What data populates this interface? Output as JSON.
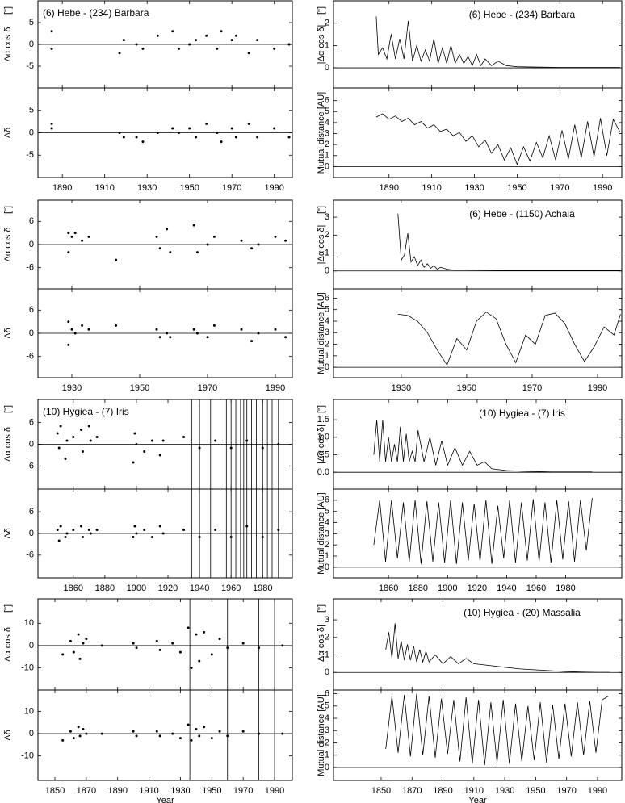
{
  "chart_data": [
    {
      "type": "scatter",
      "title": "(6) Hebe - (234) Barbara",
      "ylabel": "Δα cos δ",
      "y_unit": "[\"]",
      "xlim": [
        1878.5,
        1998.5
      ],
      "ylim": [
        -10,
        10
      ],
      "yticks": [
        -5,
        0,
        5
      ],
      "x": [
        1885,
        1885,
        1917,
        1919,
        1925,
        1928,
        1935,
        1942,
        1945,
        1950,
        1953,
        1958,
        1963,
        1965,
        1970,
        1972,
        1978,
        1982,
        1990,
        1997
      ],
      "values": [
        3,
        -1,
        -2,
        1,
        0,
        -1,
        2,
        3,
        -1,
        0,
        1,
        2,
        -1,
        3,
        1,
        2,
        -2,
        1,
        -1,
        0
      ]
    },
    {
      "type": "scatter",
      "ylabel": "Δδ",
      "xlim": [
        1878.5,
        1998.5
      ],
      "ylim": [
        -10,
        10
      ],
      "yticks": [
        -5,
        0,
        5
      ],
      "xticks": [
        1890,
        1910,
        1930,
        1950,
        1970,
        1990
      ],
      "x": [
        1885,
        1885,
        1917,
        1919,
        1925,
        1928,
        1935,
        1942,
        1945,
        1950,
        1953,
        1958,
        1963,
        1965,
        1970,
        1972,
        1978,
        1982,
        1990,
        1997
      ],
      "values": [
        2,
        1,
        0,
        -1,
        -1,
        -2,
        0,
        1,
        0,
        1,
        -1,
        2,
        0,
        -2,
        1,
        -1,
        2,
        -1,
        1,
        -1
      ]
    },
    {
      "type": "line",
      "title": "(6) Hebe - (234) Barbara",
      "ylabel": "|Δα cos δ|",
      "y_unit": "[\"]",
      "xlim": [
        1864,
        1999
      ],
      "ylim": [
        -0.9,
        3.0
      ],
      "yticks": [
        0,
        1,
        2
      ],
      "x": [
        1884,
        1885,
        1887,
        1889,
        1891,
        1893,
        1895,
        1897,
        1899,
        1901,
        1903,
        1905,
        1907,
        1909,
        1911,
        1913,
        1915,
        1917,
        1919,
        1921,
        1923,
        1925,
        1927,
        1929,
        1931,
        1933,
        1935,
        1938,
        1941,
        1945,
        1950,
        1960,
        1970,
        1980,
        1990,
        1998
      ],
      "values": [
        2.3,
        0.6,
        0.9,
        0.4,
        1.5,
        0.4,
        1.3,
        0.4,
        2.1,
        0.3,
        1.0,
        0.3,
        0.8,
        0.3,
        1.3,
        0.2,
        0.9,
        0.2,
        1.0,
        0.2,
        0.6,
        0.2,
        0.5,
        0.1,
        0.6,
        0.1,
        0.4,
        0.1,
        0.3,
        0.1,
        0.05,
        0.03,
        0.02,
        0.02,
        0.02,
        0.02
      ]
    },
    {
      "type": "line",
      "ylabel": "Mutual distance [AU]",
      "xlim": [
        1864,
        1999
      ],
      "ylim": [
        -1,
        7.15
      ],
      "yticks": [
        0,
        1,
        2,
        3,
        4,
        5,
        6
      ],
      "xticks": [
        1890,
        1910,
        1930,
        1950,
        1970,
        1990
      ],
      "x": [
        1884,
        1887,
        1890,
        1893,
        1896,
        1899,
        1902,
        1905,
        1908,
        1911,
        1914,
        1917,
        1920,
        1923,
        1926,
        1929,
        1932,
        1935,
        1938,
        1941,
        1944,
        1947,
        1950,
        1953,
        1956,
        1959,
        1962,
        1965,
        1968,
        1971,
        1974,
        1977,
        1980,
        1983,
        1986,
        1989,
        1992,
        1995,
        1998
      ],
      "values": [
        4.5,
        4.8,
        4.3,
        4.6,
        4.1,
        4.4,
        3.8,
        4.1,
        3.5,
        3.8,
        3.2,
        3.4,
        2.8,
        3.1,
        2.3,
        2.8,
        1.8,
        2.4,
        1.2,
        2.0,
        0.6,
        1.7,
        0.2,
        1.8,
        0.5,
        2.2,
        0.8,
        2.8,
        0.6,
        3.3,
        0.7,
        3.8,
        0.8,
        4.1,
        0.9,
        4.4,
        1.0,
        4.3,
        3.2
      ]
    },
    {
      "type": "scatter",
      "ylabel": "Δα cos δ",
      "y_unit": "[\"]",
      "xlim": [
        1920,
        1995
      ],
      "ylim": [
        -11.5,
        11.5
      ],
      "yticks": [
        -6,
        0,
        6
      ],
      "x": [
        1929,
        1929,
        1930,
        1931,
        1933,
        1935,
        1943,
        1955,
        1956,
        1958,
        1959,
        1966,
        1967,
        1970,
        1972,
        1980,
        1983,
        1985,
        1990,
        1993
      ],
      "values": [
        3,
        -2,
        2,
        3,
        1,
        2,
        -4,
        2,
        -1,
        4,
        -2,
        5,
        -2,
        0,
        2,
        1,
        -1,
        0,
        2,
        1
      ]
    },
    {
      "type": "scatter",
      "ylabel": "Δδ",
      "xlim": [
        1920,
        1995
      ],
      "ylim": [
        -11.5,
        11.5
      ],
      "yticks": [
        -6,
        0,
        6
      ],
      "xticks": [
        1930,
        1950,
        1970,
        1990
      ],
      "x": [
        1929,
        1929,
        1930,
        1931,
        1933,
        1935,
        1943,
        1955,
        1956,
        1958,
        1959,
        1966,
        1967,
        1970,
        1972,
        1980,
        1983,
        1985,
        1990,
        1993
      ],
      "values": [
        3,
        -3,
        1,
        0,
        2,
        1,
        2,
        1,
        -1,
        0,
        -1,
        1,
        0,
        -1,
        2,
        1,
        -2,
        0,
        1,
        -1
      ]
    },
    {
      "type": "line",
      "title": "(6) Hebe - (1150) Achaia",
      "ylabel": "|Δα cos δ|",
      "y_unit": "[\"]",
      "xlim": [
        1909.3,
        1997.4
      ],
      "ylim": [
        -1,
        3.95
      ],
      "yticks": [
        0,
        1,
        2,
        3
      ],
      "x": [
        1929,
        1930,
        1931,
        1932,
        1933,
        1934,
        1935,
        1936,
        1937,
        1938,
        1939,
        1940,
        1941,
        1942,
        1944,
        1946,
        1950,
        1960,
        1970,
        1980,
        1990,
        1997
      ],
      "values": [
        3.2,
        0.6,
        0.9,
        2.1,
        0.5,
        0.8,
        0.3,
        0.6,
        0.2,
        0.4,
        0.15,
        0.3,
        0.1,
        0.2,
        0.1,
        0.05,
        0.05,
        0.03,
        0.03,
        0.03,
        0.03,
        0.03
      ]
    },
    {
      "type": "line",
      "ylabel": "Mutual distance [AU]",
      "xlim": [
        1909.3,
        1997.4
      ],
      "ylim": [
        -0.9,
        6.8
      ],
      "yticks": [
        0,
        1,
        2,
        3,
        4,
        5,
        6
      ],
      "xticks": [
        1930,
        1950,
        1970,
        1990
      ],
      "x": [
        1929,
        1932,
        1935,
        1938,
        1941,
        1944,
        1947,
        1950,
        1953,
        1956,
        1959,
        1962,
        1965,
        1968,
        1971,
        1974,
        1977,
        1980,
        1983,
        1986,
        1989,
        1992,
        1995,
        1997
      ],
      "values": [
        4.6,
        4.5,
        4.0,
        3.0,
        1.5,
        0.2,
        2.5,
        1.5,
        4.0,
        4.8,
        4.2,
        2.0,
        0.4,
        2.8,
        2.0,
        4.5,
        4.7,
        3.8,
        2.0,
        0.5,
        1.8,
        3.5,
        2.8,
        4.6
      ]
    },
    {
      "type": "scatter",
      "title": "(10) Hygiea - (7) Iris",
      "ylabel": "Δα cos δ",
      "y_unit": "[\"]",
      "xlim": [
        1837.6,
        1998.8
      ],
      "ylim": [
        -12.3,
        12.3
      ],
      "yticks": [
        -6,
        0,
        6
      ],
      "vlines": [
        1935,
        1940,
        1947,
        1953,
        1957,
        1960,
        1963,
        1966,
        1968,
        1970,
        1973,
        1976,
        1980,
        1983,
        1986,
        1990
      ],
      "x": [
        1850,
        1851,
        1852,
        1855,
        1856,
        1860,
        1865,
        1866,
        1870,
        1871,
        1875,
        1898,
        1899,
        1900,
        1905,
        1910,
        1915,
        1917,
        1930,
        1940,
        1950,
        1960,
        1970,
        1980,
        1990
      ],
      "values": [
        3,
        -1,
        5,
        -4,
        1,
        2,
        4,
        -2,
        5,
        1,
        2,
        -5,
        3,
        0,
        -2,
        1,
        -3,
        1,
        2,
        -1,
        1,
        -1,
        1,
        -1,
        0
      ]
    },
    {
      "type": "scatter",
      "ylabel": "Δδ",
      "xlim": [
        1837.6,
        1998.8
      ],
      "ylim": [
        -12.3,
        12.3
      ],
      "yticks": [
        -6,
        0,
        6
      ],
      "xticks": [
        1860,
        1880,
        1900,
        1920,
        1940,
        1960,
        1980
      ],
      "x": [
        1850,
        1851,
        1852,
        1855,
        1856,
        1860,
        1865,
        1866,
        1870,
        1871,
        1875,
        1898,
        1899,
        1900,
        1905,
        1910,
        1915,
        1917,
        1930,
        1940,
        1950,
        1960,
        1970,
        1980,
        1990
      ],
      "values": [
        1,
        -2,
        2,
        -1,
        0,
        1,
        2,
        -1,
        1,
        0,
        1,
        -1,
        2,
        0,
        1,
        -1,
        2,
        0,
        1,
        -1,
        1,
        -1,
        2,
        -1,
        1
      ]
    },
    {
      "type": "line",
      "title": "(10) Hygiea - (7) Iris",
      "ylabel": "|Δα cos δ|",
      "y_unit": "[\"]",
      "xlim": [
        1822.7,
        2018
      ],
      "ylim": [
        -0.48,
        2.08
      ],
      "yticks": [
        {
          "value": 0,
          "label": "0.0"
        },
        0.5,
        {
          "value": 1,
          "label": "1.0"
        },
        1.5
      ],
      "x": [
        1850,
        1852,
        1854,
        1856,
        1858,
        1860,
        1862,
        1864,
        1866,
        1868,
        1870,
        1872,
        1874,
        1876,
        1878,
        1880,
        1884,
        1888,
        1892,
        1896,
        1900,
        1905,
        1910,
        1915,
        1920,
        1925,
        1930,
        1940,
        1950,
        1960,
        1970,
        1980,
        1990,
        1998
      ],
      "values": [
        0.5,
        1.5,
        0.3,
        1.5,
        0.3,
        1.0,
        0.3,
        0.8,
        0.3,
        1.3,
        0.3,
        1.1,
        0.3,
        0.6,
        0.3,
        1.2,
        0.3,
        1.0,
        0.2,
        0.9,
        0.2,
        0.7,
        0.2,
        0.6,
        0.2,
        0.3,
        0.1,
        0.05,
        0.03,
        0.02,
        0.01,
        0.01,
        0.01,
        0.01
      ]
    },
    {
      "type": "line",
      "ylabel": "Mutual distance [AU]",
      "xlim": [
        1822.7,
        2018
      ],
      "ylim": [
        -0.95,
        7.0
      ],
      "yticks": [
        0,
        1,
        2,
        3,
        4,
        5,
        6
      ],
      "xticks": [
        1860,
        1880,
        1900,
        1920,
        1940,
        1960,
        1980
      ],
      "x": [
        1850,
        1854,
        1858,
        1862,
        1866,
        1870,
        1874,
        1878,
        1882,
        1886,
        1890,
        1894,
        1898,
        1902,
        1906,
        1910,
        1914,
        1918,
        1922,
        1926,
        1930,
        1934,
        1938,
        1942,
        1946,
        1950,
        1954,
        1958,
        1962,
        1966,
        1970,
        1974,
        1978,
        1982,
        1986,
        1990,
        1994,
        1998
      ],
      "values": [
        2.0,
        6.0,
        0.5,
        6.0,
        0.8,
        5.8,
        0.5,
        6.0,
        0.3,
        5.9,
        0.5,
        5.8,
        0.4,
        6.0,
        0.3,
        5.8,
        0.6,
        5.7,
        0.5,
        6.0,
        0.3,
        5.5,
        0.8,
        6.0,
        0.4,
        5.8,
        0.6,
        6.1,
        0.5,
        5.8,
        0.4,
        6.0,
        0.7,
        5.9,
        0.5,
        6.0,
        1.5,
        6.2
      ]
    },
    {
      "type": "scatter",
      "ylabel": "Δα cos δ",
      "y_unit": "[\"]",
      "xlim": [
        1839.2,
        2001.3
      ],
      "ylim": [
        -20,
        21
      ],
      "yticks": [
        -10,
        0,
        10
      ],
      "vlines": [
        1936,
        1960,
        1980,
        1990
      ],
      "x": [
        1855,
        1860,
        1862,
        1865,
        1866,
        1868,
        1870,
        1880,
        1900,
        1902,
        1915,
        1917,
        1925,
        1930,
        1935,
        1937,
        1940,
        1942,
        1945,
        1950,
        1955,
        1960,
        1970,
        1980,
        1995
      ],
      "values": [
        -4,
        2,
        -3,
        5,
        -6,
        1,
        3,
        0,
        1,
        -1,
        2,
        -2,
        1,
        -3,
        8,
        -10,
        5,
        -7,
        6,
        -4,
        3,
        -1,
        1,
        -1,
        0
      ]
    },
    {
      "type": "scatter",
      "ylabel": "Δδ",
      "xlabel": "Year",
      "xlim": [
        1839.2,
        2001.3
      ],
      "ylim": [
        -21,
        19.6
      ],
      "yticks": [
        -10,
        0,
        10
      ],
      "xticks": [
        1850,
        1870,
        1890,
        1910,
        1930,
        1950,
        1970,
        1990
      ],
      "x": [
        1855,
        1860,
        1862,
        1865,
        1866,
        1868,
        1870,
        1880,
        1900,
        1902,
        1915,
        1917,
        1925,
        1930,
        1935,
        1937,
        1940,
        1942,
        1945,
        1950,
        1955,
        1960,
        1970,
        1980,
        1995
      ],
      "values": [
        -3,
        1,
        -2,
        3,
        -1,
        2,
        0,
        0,
        1,
        -1,
        1,
        -1,
        0,
        -2,
        4,
        -3,
        2,
        -1,
        3,
        -2,
        1,
        -1,
        1,
        0,
        0
      ]
    },
    {
      "type": "line",
      "title": "(10) Hygiea - (20) Massalia",
      "ylabel": "|Δα cos δ|",
      "y_unit": "[\"]",
      "xlim": [
        1819.2,
        2005.7
      ],
      "ylim": [
        -1,
        4.2
      ],
      "yticks": [
        0,
        1,
        2,
        3
      ],
      "x": [
        1853,
        1855,
        1857,
        1859,
        1861,
        1863,
        1865,
        1867,
        1869,
        1871,
        1873,
        1875,
        1877,
        1879,
        1881,
        1885,
        1890,
        1895,
        1900,
        1905,
        1910,
        1920,
        1930,
        1940,
        1950,
        1960,
        1970,
        1980,
        1990,
        1998
      ],
      "values": [
        1.3,
        2.3,
        0.8,
        2.8,
        0.8,
        1.8,
        0.7,
        1.6,
        0.7,
        1.5,
        0.6,
        1.3,
        0.6,
        1.2,
        0.6,
        1.0,
        0.5,
        0.9,
        0.5,
        0.8,
        0.5,
        0.4,
        0.3,
        0.2,
        0.15,
        0.1,
        0.05,
        0.02,
        0.01,
        0.01
      ]
    },
    {
      "type": "line",
      "ylabel": "Mutual distance [AU]",
      "xlabel": "Year",
      "xlim": [
        1819.2,
        2005.7
      ],
      "ylim": [
        -1.05,
        6.3
      ],
      "yticks": [
        0,
        1,
        2,
        3,
        4,
        5,
        6
      ],
      "xticks": [
        1850,
        1870,
        1890,
        1910,
        1930,
        1950,
        1970,
        1990
      ],
      "x": [
        1853,
        1857,
        1861,
        1865,
        1869,
        1873,
        1877,
        1881,
        1885,
        1889,
        1893,
        1897,
        1901,
        1905,
        1909,
        1913,
        1917,
        1921,
        1925,
        1929,
        1933,
        1937,
        1941,
        1945,
        1949,
        1953,
        1957,
        1961,
        1965,
        1969,
        1973,
        1977,
        1981,
        1985,
        1989,
        1993,
        1997
      ],
      "values": [
        1.5,
        5.8,
        1.2,
        5.9,
        0.9,
        6.0,
        1.0,
        5.8,
        0.8,
        5.6,
        1.1,
        5.5,
        0.5,
        5.7,
        0.3,
        5.5,
        0.2,
        5.3,
        0.4,
        5.5,
        0.3,
        5.2,
        0.5,
        5.0,
        0.6,
        5.3,
        0.4,
        5.1,
        0.7,
        5.2,
        0.9,
        5.3,
        1.0,
        5.4,
        1.2,
        5.5,
        5.8
      ]
    }
  ]
}
